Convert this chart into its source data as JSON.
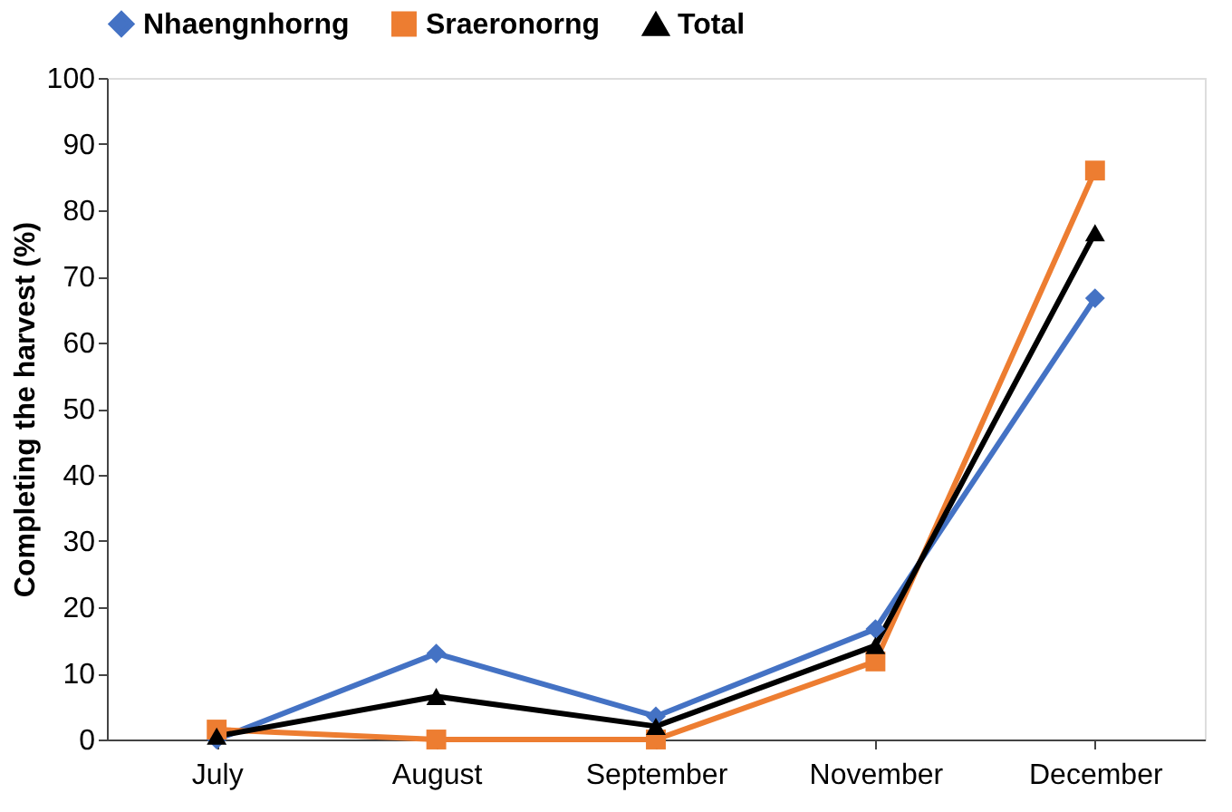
{
  "chart_data": {
    "type": "line",
    "ylabel": "Completing the harvest (%)",
    "categories": [
      "July",
      "August",
      "September",
      "November",
      "December"
    ],
    "series": [
      {
        "name": "Nhaengnhorng",
        "color": "#4472c4",
        "marker": "diamond",
        "values": [
          0,
          13,
          3.5,
          16.7,
          66.7
        ]
      },
      {
        "name": "Sraeronorng",
        "color": "#ed7d31",
        "marker": "square",
        "values": [
          1.5,
          0,
          0,
          11.8,
          86
        ]
      },
      {
        "name": "Total",
        "color": "#000000",
        "marker": "triangle",
        "values": [
          0.5,
          6.5,
          2,
          14.2,
          76.6
        ]
      }
    ],
    "ylim": [
      0,
      100
    ],
    "yticks": [
      0,
      10,
      20,
      30,
      40,
      50,
      60,
      70,
      80,
      90,
      100
    ],
    "grid": false,
    "legend": "top"
  }
}
